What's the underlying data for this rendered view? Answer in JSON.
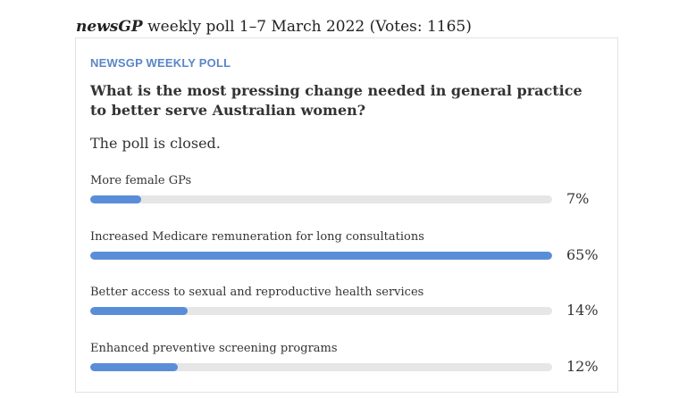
{
  "heading": {
    "brand": "newsGP",
    "rest": " weekly poll 1–7 March 2022 (Votes: 1165)"
  },
  "poll": {
    "label": "NEWSGP WEEKLY POLL",
    "question": "What is the most pressing change needed in general practice to better serve Australian women?",
    "status": "The poll is closed.",
    "accent_color": "#5a8dd8",
    "options": [
      {
        "label": "More female GPs",
        "percent": "7%",
        "value": 7,
        "bar_fill_fraction": 0.11
      },
      {
        "label": "Increased Medicare remuneration for long consultations",
        "percent": "65%",
        "value": 65,
        "bar_fill_fraction": 1.0
      },
      {
        "label": "Better access to sexual and reproductive health services",
        "percent": "14%",
        "value": 14,
        "bar_fill_fraction": 0.21
      },
      {
        "label": "Enhanced preventive screening programs",
        "percent": "12%",
        "value": 12,
        "bar_fill_fraction": 0.19
      }
    ]
  }
}
